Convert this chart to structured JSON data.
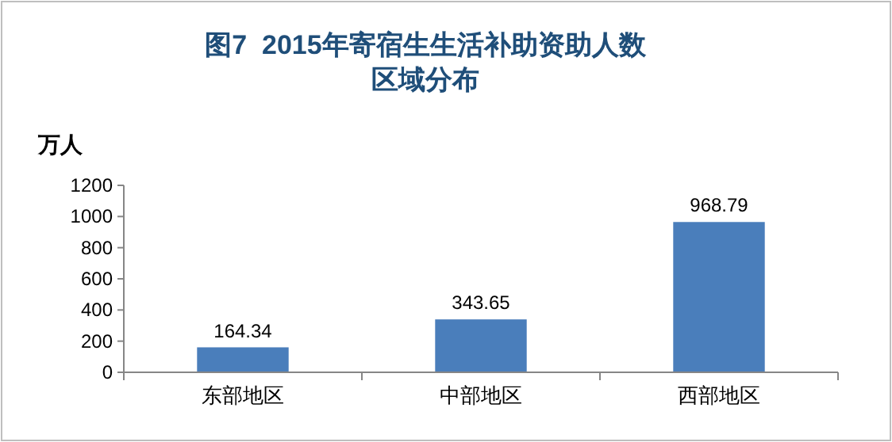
{
  "chart_data": {
    "type": "bar",
    "title": "图7  2015年寄宿生生活补助资助人数区域分布",
    "ylabel": "万人",
    "categories": [
      "东部地区",
      "中部地区",
      "西部地区"
    ],
    "values": [
      164.34,
      343.65,
      968.79
    ],
    "color": "#4a7ebb",
    "ylim": [
      0,
      1200
    ],
    "yticks": [
      0,
      200,
      400,
      600,
      800,
      1000,
      1200
    ],
    "grid": false,
    "data_labels": true
  }
}
